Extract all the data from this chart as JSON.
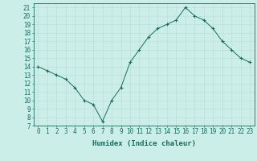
{
  "x": [
    0,
    1,
    2,
    3,
    4,
    5,
    6,
    7,
    8,
    9,
    10,
    11,
    12,
    13,
    14,
    15,
    16,
    17,
    18,
    19,
    20,
    21,
    22,
    23
  ],
  "y": [
    14.0,
    13.5,
    13.0,
    12.5,
    11.5,
    10.0,
    9.5,
    7.5,
    10.0,
    11.5,
    14.5,
    16.0,
    17.5,
    18.5,
    19.0,
    19.5,
    21.0,
    20.0,
    19.5,
    18.5,
    17.0,
    16.0,
    15.0,
    14.5
  ],
  "xlim": [
    -0.5,
    23.5
  ],
  "ylim": [
    7,
    21.5
  ],
  "yticks": [
    7,
    8,
    9,
    10,
    11,
    12,
    13,
    14,
    15,
    16,
    17,
    18,
    19,
    20,
    21
  ],
  "xticks": [
    0,
    1,
    2,
    3,
    4,
    5,
    6,
    7,
    8,
    9,
    10,
    11,
    12,
    13,
    14,
    15,
    16,
    17,
    18,
    19,
    20,
    21,
    22,
    23
  ],
  "xlabel": "Humidex (Indice chaleur)",
  "line_color": "#1a6b5e",
  "marker_color": "#1a6b5e",
  "bg_color": "#cceee8",
  "grid_color": "#b8ddd6",
  "tick_fontsize": 5.5,
  "xlabel_fontsize": 6.5
}
